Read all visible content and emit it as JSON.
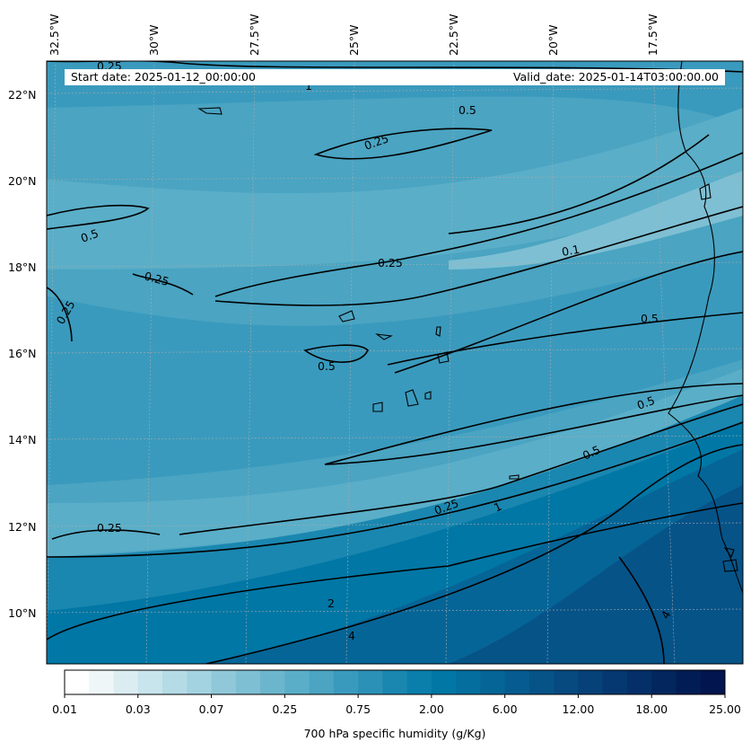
{
  "header": {
    "start_date": "Start date: 2025-01-12_00:00:00",
    "valid_date": "Valid_date: 2025-01-14T03:00:00.00"
  },
  "lon_labels": [
    "32.5°W",
    "30°W",
    "27.5°W",
    "25°W",
    "22.5°W",
    "20°W",
    "17.5°W"
  ],
  "lat_labels": [
    "22°N",
    "20°N",
    "18°N",
    "16°N",
    "14°N",
    "12°N",
    "10°N"
  ],
  "contour_labels": [
    "0.25",
    "1",
    "0.5",
    "0.25",
    "0.5",
    "0.25",
    "0.25",
    "0.1",
    "0.25",
    "0.5",
    "0.5",
    "0.5",
    "0.5",
    "0.25",
    "0.25",
    "1",
    "2",
    "4",
    "4"
  ],
  "colorbar": {
    "title": "700 hPa specific humidity (g/Kg)",
    "tick_labels": [
      "0.01",
      "0.03",
      "0.07",
      "0.25",
      "0.75",
      "2.00",
      "6.00",
      "12.00",
      "18.00",
      "25.00"
    ],
    "colors": [
      "#ffffff",
      "#eef6f8",
      "#dcedf2",
      "#c8e4ec",
      "#b4dbe6",
      "#a3d3e0",
      "#90c8d9",
      "#7ebfd3",
      "#6bb6cd",
      "#5aaec8",
      "#4aa4c2",
      "#3a9abd",
      "#2b91b7",
      "#1a87b0",
      "#0a7fac",
      "#0177a5",
      "#046e9e",
      "#066597",
      "#065c90",
      "#065388",
      "#064a80",
      "#064178",
      "#053870",
      "#042f68",
      "#03265e",
      "#021d55",
      "#02154e"
    ]
  }
}
